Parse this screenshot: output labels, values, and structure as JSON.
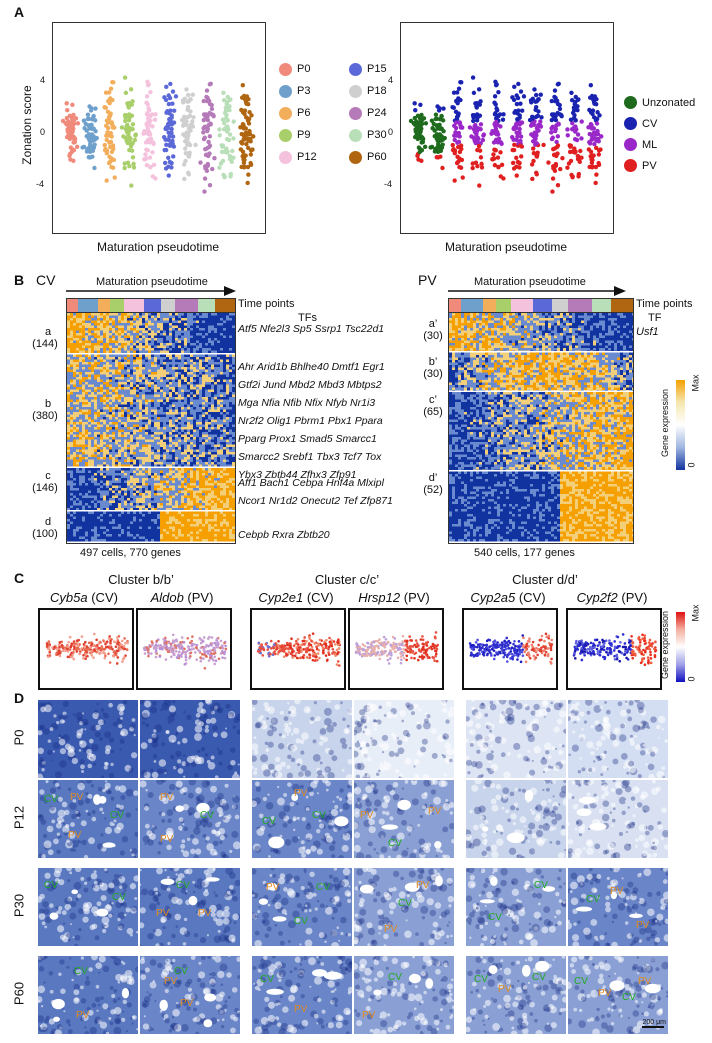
{
  "panels": {
    "A": "A",
    "B": "B",
    "C": "C",
    "D": "D"
  },
  "panelA": {
    "ylabel": "Zonation score",
    "xlabel_left": "Maturation pseudotime",
    "xlabel_right": "Maturation pseudotime",
    "yticks": [
      "4",
      "0",
      "-4"
    ],
    "legend_left": [
      {
        "label": "P0",
        "color": "#f08a7a"
      },
      {
        "label": "P15",
        "color": "#5b68d8"
      },
      {
        "label": "P3",
        "color": "#6fa0cc"
      },
      {
        "label": "P18",
        "color": "#cfcfcf"
      },
      {
        "label": "P6",
        "color": "#f3ae5c"
      },
      {
        "label": "P24",
        "color": "#b57ab8"
      },
      {
        "label": "P9",
        "color": "#a8cf6a"
      },
      {
        "label": "P30",
        "color": "#b9dfb9"
      },
      {
        "label": "P12",
        "color": "#f5c2dd"
      },
      {
        "label": "P60",
        "color": "#b06510"
      }
    ],
    "legend_right": [
      {
        "label": "Unzonated",
        "color": "#1e6b1e"
      },
      {
        "label": "CV",
        "color": "#1a22b0"
      },
      {
        "label": "ML",
        "color": "#9a28c8"
      },
      {
        "label": "PV",
        "color": "#e02020"
      }
    ]
  },
  "panelB": {
    "cv_title": "CV",
    "pv_title": "PV",
    "arrow_label_cv": "Maturation pseudotime",
    "arrow_label_pv": "Maturation pseudotime",
    "timepoints_cv": "Time points",
    "timepoints_pv": "Time points",
    "tfs_header": "TFs",
    "tf_header": "TF",
    "clusters_cv": [
      {
        "name": "a",
        "count": "(144)",
        "tfs": [
          "Atf5 Nfe2l3 Sp5 Ssrp1 Tsc22d1"
        ]
      },
      {
        "name": "b",
        "count": "(380)",
        "tfs": [
          "Ahr Arid1b Bhlhe40 Dmtf1 Egr1",
          "Gtf2i Jund Mbd2 Mbd3 Mbtps2",
          "Mga Nfia Nfib Nfix Nfyb Nr1i3",
          "Nr2f2 Olig1 Pbrm1 Pbx1 Ppara",
          "Pparg Prox1 Smad5 Smarcc1",
          "Smarcc2 Srebf1 Tbx3 Tcf7 Tox",
          "Ybx3 Zbtb44 Zfhx3 Zfp91"
        ]
      },
      {
        "name": "c",
        "count": "(146)",
        "tfs": [
          "Aff1 Bach1 Cebpa Hnf4a Mlxipl",
          "Ncor1 Nr1d2 Onecut2 Tef Zfp871"
        ]
      },
      {
        "name": "d",
        "count": "(100)",
        "tfs": [
          "Cebpb Rxra Zbtb20"
        ]
      }
    ],
    "clusters_pv": [
      {
        "name": "a’",
        "count": "(30)",
        "tfs": [
          "Usf1"
        ]
      },
      {
        "name": "b’",
        "count": "(30)"
      },
      {
        "name": "c’",
        "count": "(65)"
      },
      {
        "name": "d’",
        "count": "(52)"
      }
    ],
    "cv_footer": "497 cells, 770 genes",
    "pv_footer": "540 cells, 177 genes",
    "colorbar": {
      "title": "Gene expression",
      "max": "Max",
      "min": "0"
    }
  },
  "panelC": {
    "groups": [
      "Cluster b/b’",
      "Cluster c/c’",
      "Cluster d/d’"
    ],
    "genes": [
      {
        "gene": "Cyb5a",
        "zone": "(CV)"
      },
      {
        "gene": "Aldob",
        "zone": "(PV)"
      },
      {
        "gene": "Cyp2e1",
        "zone": "(CV)"
      },
      {
        "gene": "Hrsp12",
        "zone": "(PV)"
      },
      {
        "gene": "Cyp2a5",
        "zone": "(CV)"
      },
      {
        "gene": "Cyp2f2",
        "zone": "(PV)"
      }
    ],
    "colorbar": {
      "title": "Gene expression",
      "max": "Max",
      "min": "0"
    }
  },
  "panelD": {
    "rows": [
      "P0",
      "P12",
      "P30",
      "P60"
    ],
    "scalebar": "200 μm",
    "cv": "CV",
    "pv": "PV"
  }
}
